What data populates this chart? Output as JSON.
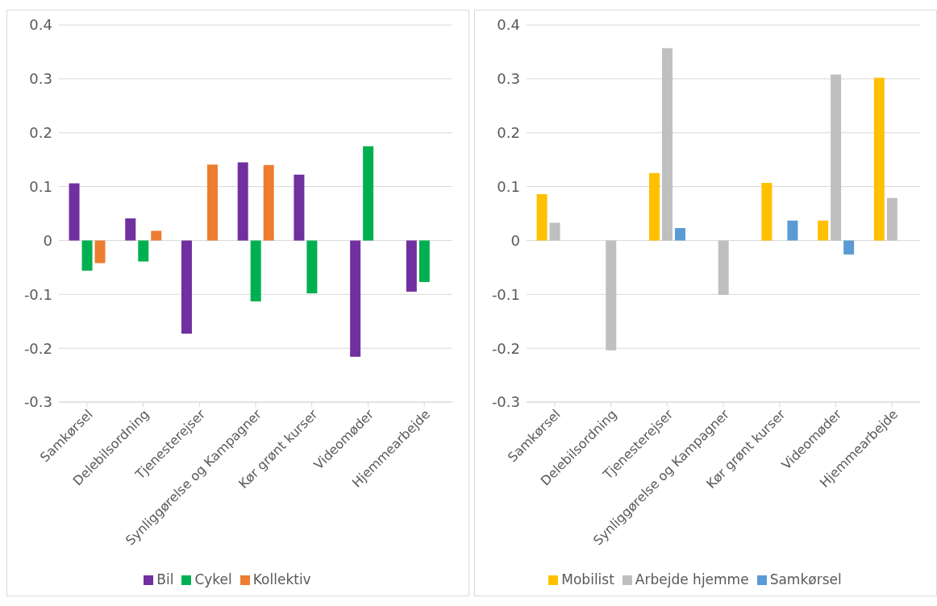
{
  "chart_data": [
    {
      "type": "bar",
      "categories": [
        "Samkørsel",
        "Delebilsordning",
        "Tjenesterejser",
        "Synliggørelse og Kampagner",
        "Kør grønt kurser",
        "Videomøder",
        "Hjemmearbejde"
      ],
      "series": [
        {
          "name": "Bil",
          "color": "#7030a0",
          "values": [
            0.106,
            0.041,
            -0.173,
            0.145,
            0.122,
            -0.216,
            -0.095
          ]
        },
        {
          "name": "Cykel",
          "color": "#00b050",
          "values": [
            -0.056,
            -0.039,
            0,
            -0.113,
            -0.098,
            0.175,
            -0.077
          ]
        },
        {
          "name": "Kollektiv",
          "color": "#ed7d31",
          "values": [
            -0.042,
            0.018,
            0.141,
            0.14,
            0,
            0,
            0
          ]
        }
      ],
      "ylim": [
        -0.3,
        0.4
      ],
      "yticks": [
        -0.3,
        -0.2,
        -0.1,
        0,
        0.1,
        0.2,
        0.3,
        0.4
      ],
      "grid": "y",
      "legend": "bottom"
    },
    {
      "type": "bar",
      "categories": [
        "Samkørsel",
        "Delebilsordning",
        "Tjenesterejser",
        "Synliggørelse og Kampagner",
        "Kør grønt kurser",
        "Videomøder",
        "Hjemmearbejde"
      ],
      "series": [
        {
          "name": "Mobilist",
          "color": "#ffc000",
          "values": [
            0.086,
            0,
            0.125,
            0,
            0.107,
            0.037,
            0.302
          ]
        },
        {
          "name": "Arbejde hjemme",
          "color": "#bfbfbf",
          "values": [
            0.033,
            -0.204,
            0.357,
            -0.101,
            0,
            0.308,
            0.079
          ]
        },
        {
          "name": "Samkørsel",
          "color": "#5b9bd5",
          "values": [
            0,
            0,
            0.023,
            0,
            0.037,
            -0.026,
            0
          ]
        }
      ],
      "ylim": [
        -0.3,
        0.4
      ],
      "yticks": [
        -0.3,
        -0.2,
        -0.1,
        0,
        0.1,
        0.2,
        0.3,
        0.4
      ],
      "grid": "y",
      "legend": "bottom"
    }
  ]
}
